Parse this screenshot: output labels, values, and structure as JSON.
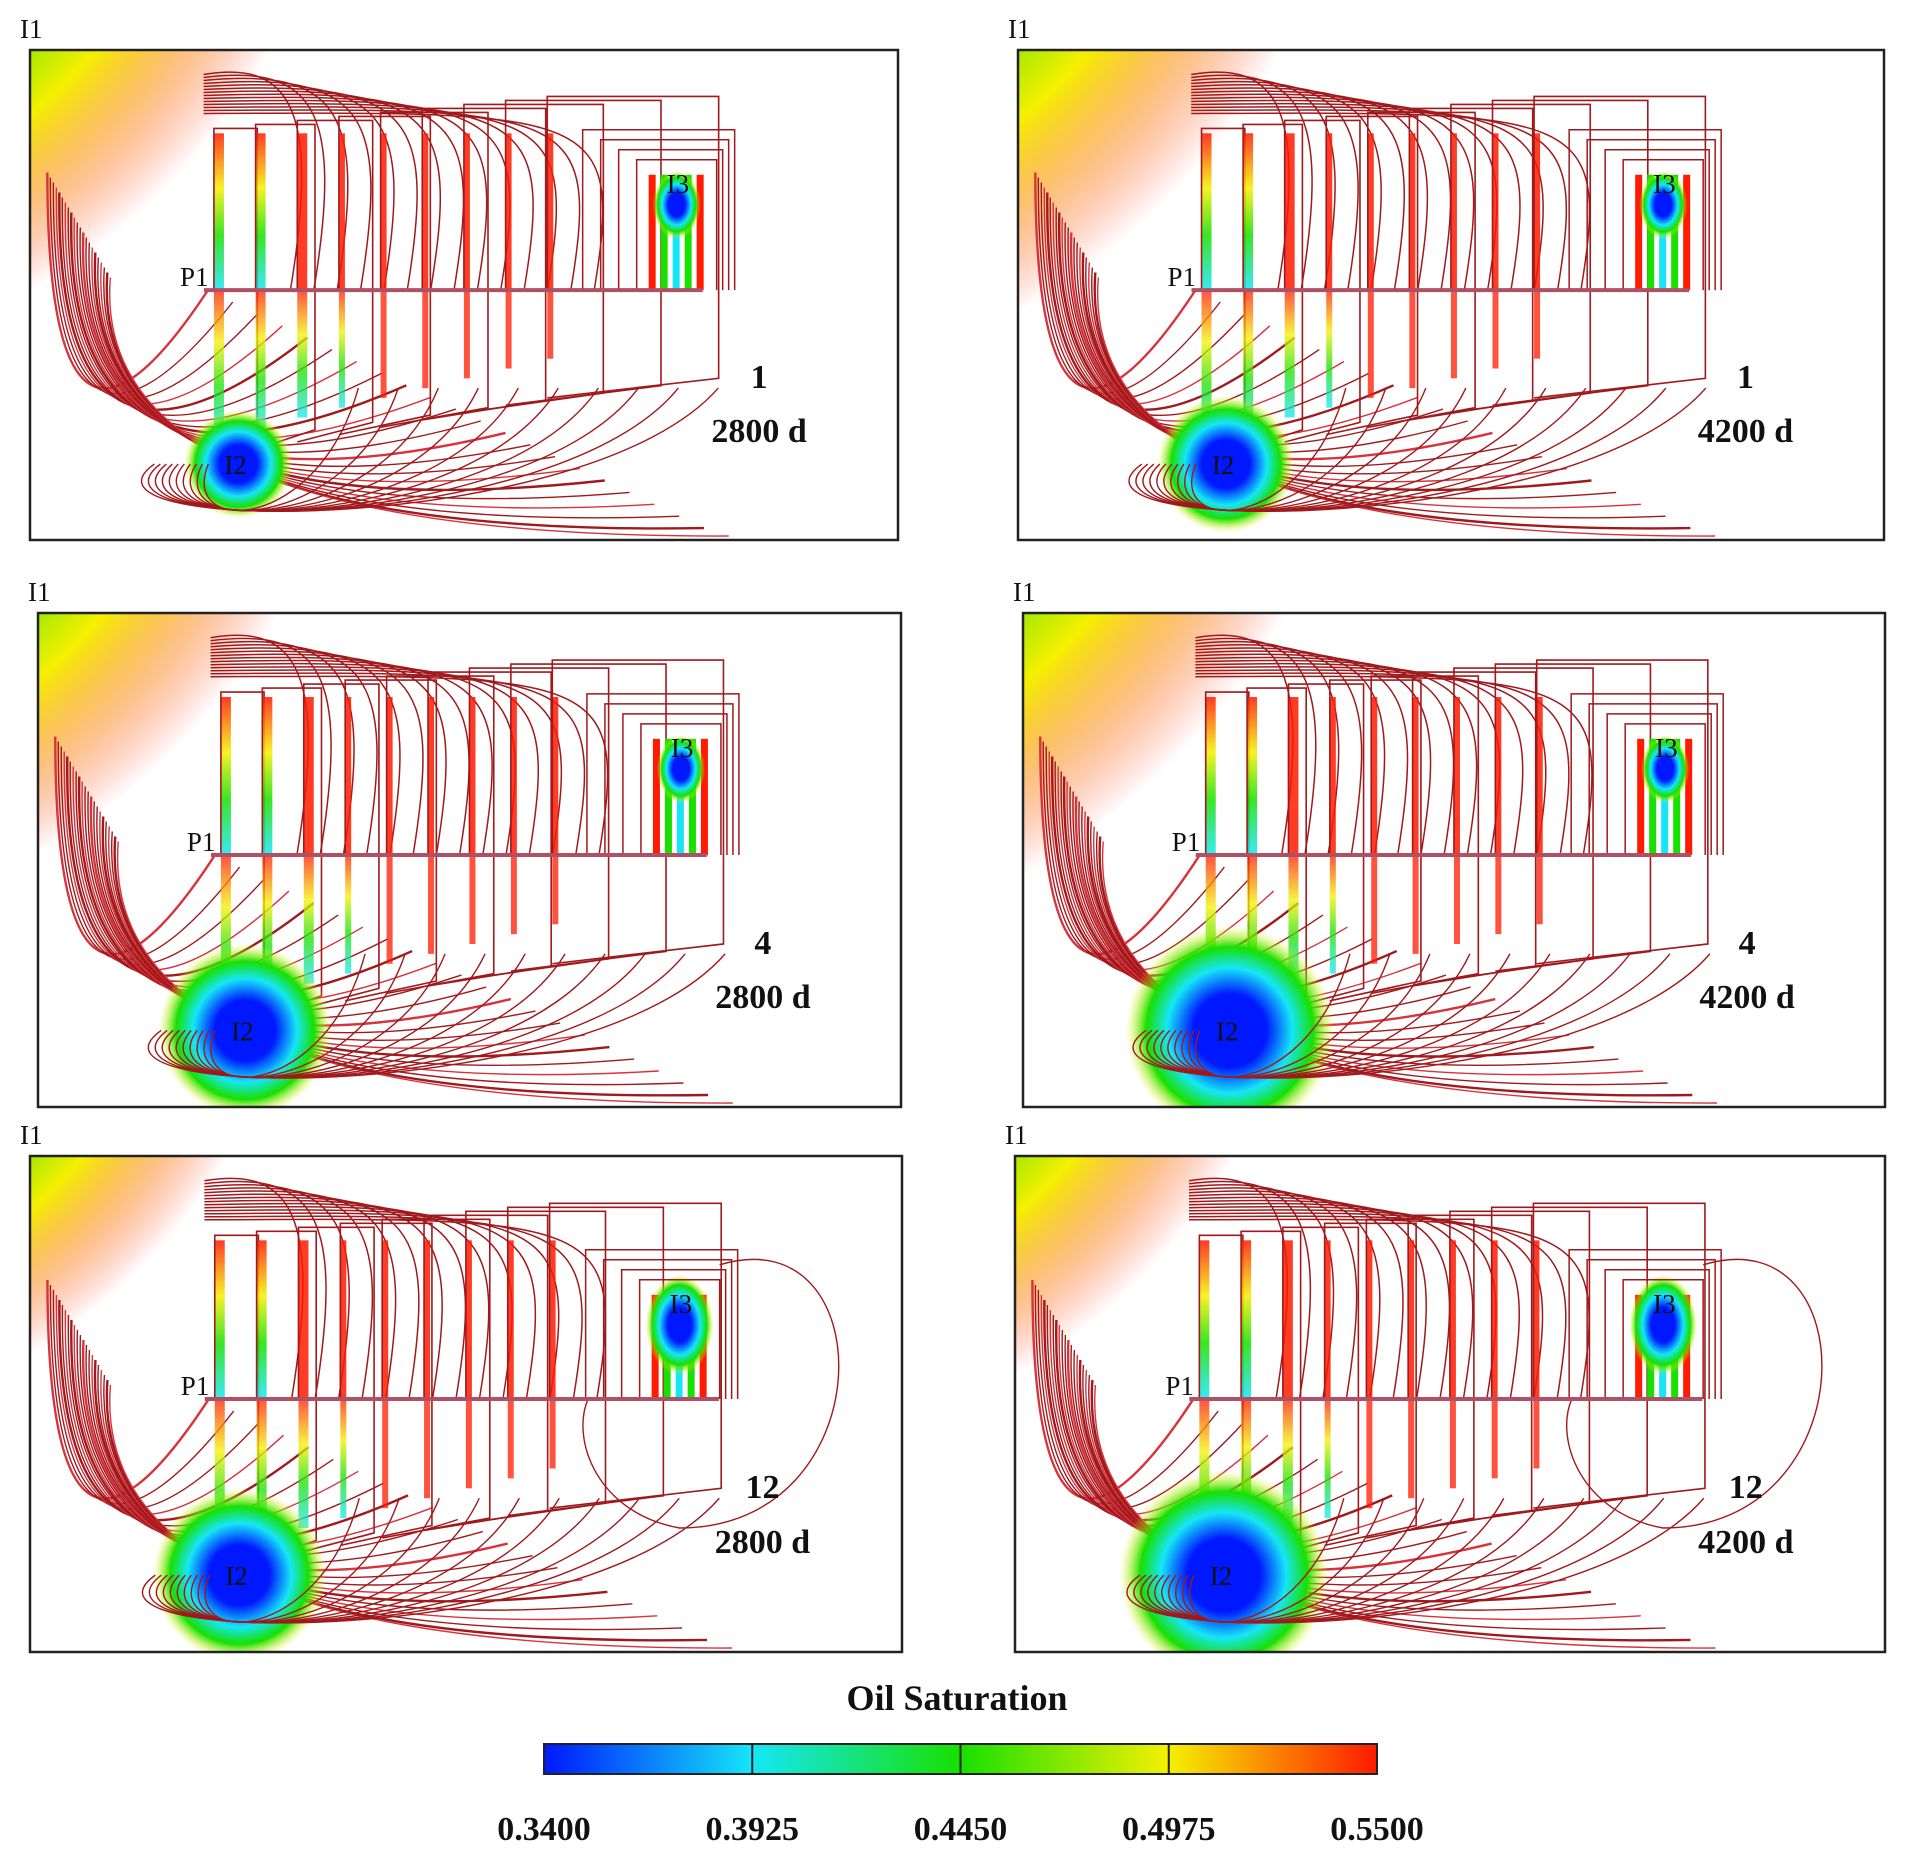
{
  "figure": {
    "panels": [
      {
        "case": "1",
        "time": "2800 d",
        "injectors": [
          "I1",
          "I2",
          "I3"
        ],
        "producer": "P1"
      },
      {
        "case": "1",
        "time": "4200 d",
        "injectors": [
          "I1",
          "I2",
          "I3"
        ],
        "producer": "P1"
      },
      {
        "case": "4",
        "time": "2800 d",
        "injectors": [
          "I1",
          "I2",
          "I3"
        ],
        "producer": "P1"
      },
      {
        "case": "4",
        "time": "4200 d",
        "injectors": [
          "I1",
          "I2",
          "I3"
        ],
        "producer": "P1"
      },
      {
        "case": "12",
        "time": "2800 d",
        "injectors": [
          "I1",
          "I2",
          "I3"
        ],
        "producer": "P1"
      },
      {
        "case": "12",
        "time": "4200 d",
        "injectors": [
          "I1",
          "I2",
          "I3"
        ],
        "producer": "P1"
      }
    ],
    "colorbar": {
      "title": "Oil Saturation",
      "ticks": [
        "0.3400",
        "0.3925",
        "0.4450",
        "0.4975",
        "0.5500"
      ],
      "min": 0.34,
      "max": 0.55,
      "colors": [
        "#0018ff",
        "#15e6f7",
        "#18e000",
        "#f5f000",
        "#ff1a00"
      ]
    },
    "colors": {
      "streamline": "#a0191c",
      "streamline_light": "#d8323c",
      "fracture": "#b05064",
      "frame": "#222222"
    }
  }
}
